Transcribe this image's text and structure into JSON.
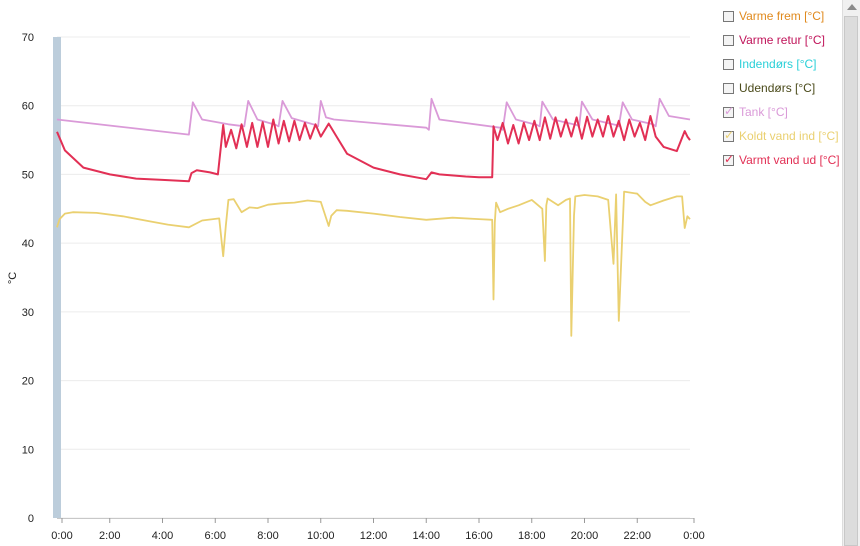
{
  "chart_data": {
    "type": "line",
    "ylabel": "°C",
    "ylim": [
      0,
      70
    ],
    "yticks": [
      0,
      10,
      20,
      30,
      40,
      50,
      60,
      70
    ],
    "xlim": [
      0,
      24
    ],
    "xticks": [
      "0:00",
      "2:00",
      "4:00",
      "6:00",
      "8:00",
      "10:00",
      "12:00",
      "14:00",
      "16:00",
      "18:00",
      "20:00",
      "22:00",
      "0:00"
    ],
    "grid": true,
    "legend_position": "right",
    "series": [
      {
        "name": "Varme frem [°C]",
        "color": "#e08a1e",
        "checked": false,
        "x": [],
        "y": []
      },
      {
        "name": "Varme retur [°C]",
        "color": "#c0145a",
        "checked": false,
        "x": [],
        "y": []
      },
      {
        "name": "Indendørs [°C]",
        "color": "#2ad0d8",
        "checked": false,
        "x": [],
        "y": []
      },
      {
        "name": "Udendørs [°C]",
        "color": "#4a4a1a",
        "checked": false,
        "x": [],
        "y": []
      },
      {
        "name": "Tank [°C]",
        "color": "#da9ad8",
        "checked": true,
        "x": [
          0,
          5.0,
          5.15,
          5.5,
          6.5,
          7.1,
          7.25,
          7.6,
          8.3,
          8.4,
          8.55,
          8.9,
          9.8,
          9.9,
          10.0,
          10.2,
          10.5,
          14.0,
          14.1,
          14.2,
          14.5,
          16.8,
          16.9,
          17.05,
          17.4,
          18.2,
          18.3,
          18.4,
          18.8,
          19.7,
          19.8,
          19.9,
          20.3,
          21.2,
          21.3,
          21.45,
          21.8,
          22.6,
          22.7,
          22.85,
          23.2,
          24.0
        ],
        "y": [
          58,
          55.8,
          60.5,
          58,
          57.3,
          57,
          60.7,
          58,
          57.2,
          57,
          60.7,
          58.2,
          57.2,
          57,
          60.7,
          58.3,
          58,
          56.8,
          56.5,
          61,
          58,
          56.8,
          56.5,
          60.5,
          58,
          57.2,
          57,
          60.6,
          58,
          57.2,
          57,
          60.6,
          58,
          57.2,
          57,
          60.5,
          58,
          57.3,
          57,
          61,
          58.5,
          58
        ]
      },
      {
        "name": "Koldt vand ind [°C]",
        "color": "#ead070",
        "checked": true,
        "x": [
          0,
          0.1,
          0.3,
          0.6,
          1.5,
          2.5,
          3.5,
          4.2,
          5.0,
          5.5,
          6.15,
          6.3,
          6.4,
          6.5,
          6.7,
          7.0,
          7.3,
          7.6,
          8.0,
          8.5,
          9.0,
          9.5,
          10.0,
          10.3,
          10.4,
          10.6,
          11.0,
          12.0,
          13.0,
          14.0,
          15.0,
          16.0,
          16.5,
          16.55,
          16.6,
          16.65,
          16.8,
          17.1,
          17.5,
          18.0,
          18.4,
          18.5,
          18.55,
          18.6,
          19.0,
          19.3,
          19.45,
          19.5,
          19.6,
          19.65,
          20.0,
          20.5,
          20.9,
          21.1,
          21.2,
          21.3,
          21.5,
          22.0,
          22.3,
          22.5,
          23.0,
          23.5,
          23.7,
          23.8,
          23.9,
          24.0
        ],
        "y": [
          42.3,
          43.5,
          44.3,
          44.5,
          44.4,
          43.9,
          43.2,
          42.7,
          42.3,
          43.3,
          43.6,
          38.1,
          42.5,
          46.3,
          46.4,
          44.5,
          45.2,
          45.1,
          45.6,
          45.8,
          45.9,
          46.2,
          46.0,
          42.5,
          44.0,
          44.8,
          44.7,
          44.3,
          43.8,
          43.4,
          43.7,
          43.5,
          43.4,
          31.8,
          43.0,
          45.9,
          44.5,
          45.0,
          45.5,
          46.3,
          45.0,
          37.4,
          45.5,
          46.5,
          45.5,
          46.3,
          46.5,
          26.5,
          44.0,
          46.8,
          47.0,
          46.8,
          46.3,
          37.0,
          47.1,
          28.7,
          47.5,
          47.2,
          46.0,
          45.5,
          46.2,
          46.8,
          46.8,
          42.2,
          43.9,
          43.5
        ]
      },
      {
        "name": "Varmt vand ud [°C]",
        "color": "#e23055",
        "checked": true,
        "x": [
          0,
          0.3,
          1.0,
          2.0,
          3.0,
          4.0,
          5.0,
          5.1,
          5.3,
          5.8,
          6.1,
          6.3,
          6.4,
          6.6,
          6.8,
          7.0,
          7.2,
          7.4,
          7.6,
          7.8,
          8.0,
          8.2,
          8.4,
          8.6,
          8.8,
          9.0,
          9.2,
          9.4,
          9.6,
          9.8,
          10.0,
          10.3,
          10.6,
          11.0,
          12.0,
          13.0,
          14.0,
          14.2,
          14.5,
          15.5,
          16.0,
          16.5,
          16.55,
          16.7,
          16.9,
          17.1,
          17.3,
          17.5,
          17.7,
          17.9,
          18.1,
          18.3,
          18.5,
          18.7,
          18.9,
          19.1,
          19.3,
          19.5,
          19.7,
          19.9,
          20.1,
          20.3,
          20.5,
          20.7,
          20.9,
          21.1,
          21.3,
          21.5,
          21.7,
          21.9,
          22.1,
          22.3,
          22.5,
          22.7,
          23.0,
          23.5,
          23.8,
          23.9,
          24.0
        ],
        "y": [
          56.2,
          53.5,
          51.0,
          50.0,
          49.4,
          49.2,
          49.0,
          50.2,
          50.6,
          50.3,
          50.0,
          57.2,
          54.0,
          56.5,
          53.8,
          57.3,
          54.0,
          57.5,
          54.0,
          57.6,
          54.0,
          58.0,
          54.5,
          57.8,
          54.8,
          57.8,
          55.0,
          57.5,
          55.2,
          57.3,
          55.5,
          57.4,
          55.5,
          53.0,
          51.0,
          50.0,
          49.3,
          50.3,
          50.0,
          49.7,
          49.6,
          49.6,
          57.0,
          55.0,
          57.5,
          54.5,
          57.2,
          54.5,
          57.5,
          55.0,
          57.8,
          55.0,
          58.3,
          55.2,
          58.3,
          55.5,
          58.0,
          55.5,
          58.3,
          55.2,
          58.4,
          55.5,
          58.0,
          55.5,
          58.5,
          55.5,
          57.8,
          55.0,
          58.0,
          55.5,
          57.5,
          55.0,
          58.5,
          55.5,
          54.0,
          53.4,
          56.3,
          55.5,
          55.0
        ]
      }
    ]
  }
}
